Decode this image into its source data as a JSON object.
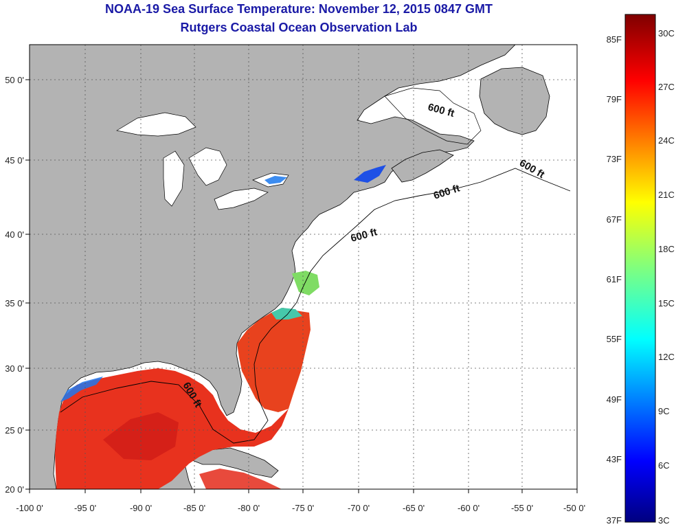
{
  "header": {
    "title": "NOAA-19 Sea Surface Temperature:  November 12, 2015 0847 GMT",
    "subtitle": "Rutgers Coastal Ocean Observation Lab"
  },
  "map": {
    "lon_labels": [
      "-100 0'",
      "-95 0'",
      "-90 0'",
      "-85 0'",
      "-80 0'",
      "-75 0'",
      "-70 0'",
      "-65 0'",
      "-60 0'",
      "-55 0'",
      "-50 0'"
    ],
    "lat_labels": [
      "50 0'",
      "45 0'",
      "40 0'",
      "35 0'",
      "30 0'",
      "25 0'",
      "20 0'"
    ],
    "isobath_label": "600 ft",
    "colors": {
      "land": "#b3b3b3",
      "ocean_no_data": "#ffffff",
      "warm_sst": "#e8321e",
      "cool_sst": "#1e50e6"
    }
  },
  "colorbar": {
    "fahrenheit": [
      "85F",
      "79F",
      "73F",
      "67F",
      "61F",
      "55F",
      "49F",
      "43F",
      "37F"
    ],
    "celsius": [
      "30C",
      "27C",
      "24C",
      "21C",
      "18C",
      "15C",
      "12C",
      "9C",
      "6C",
      "3C"
    ]
  }
}
